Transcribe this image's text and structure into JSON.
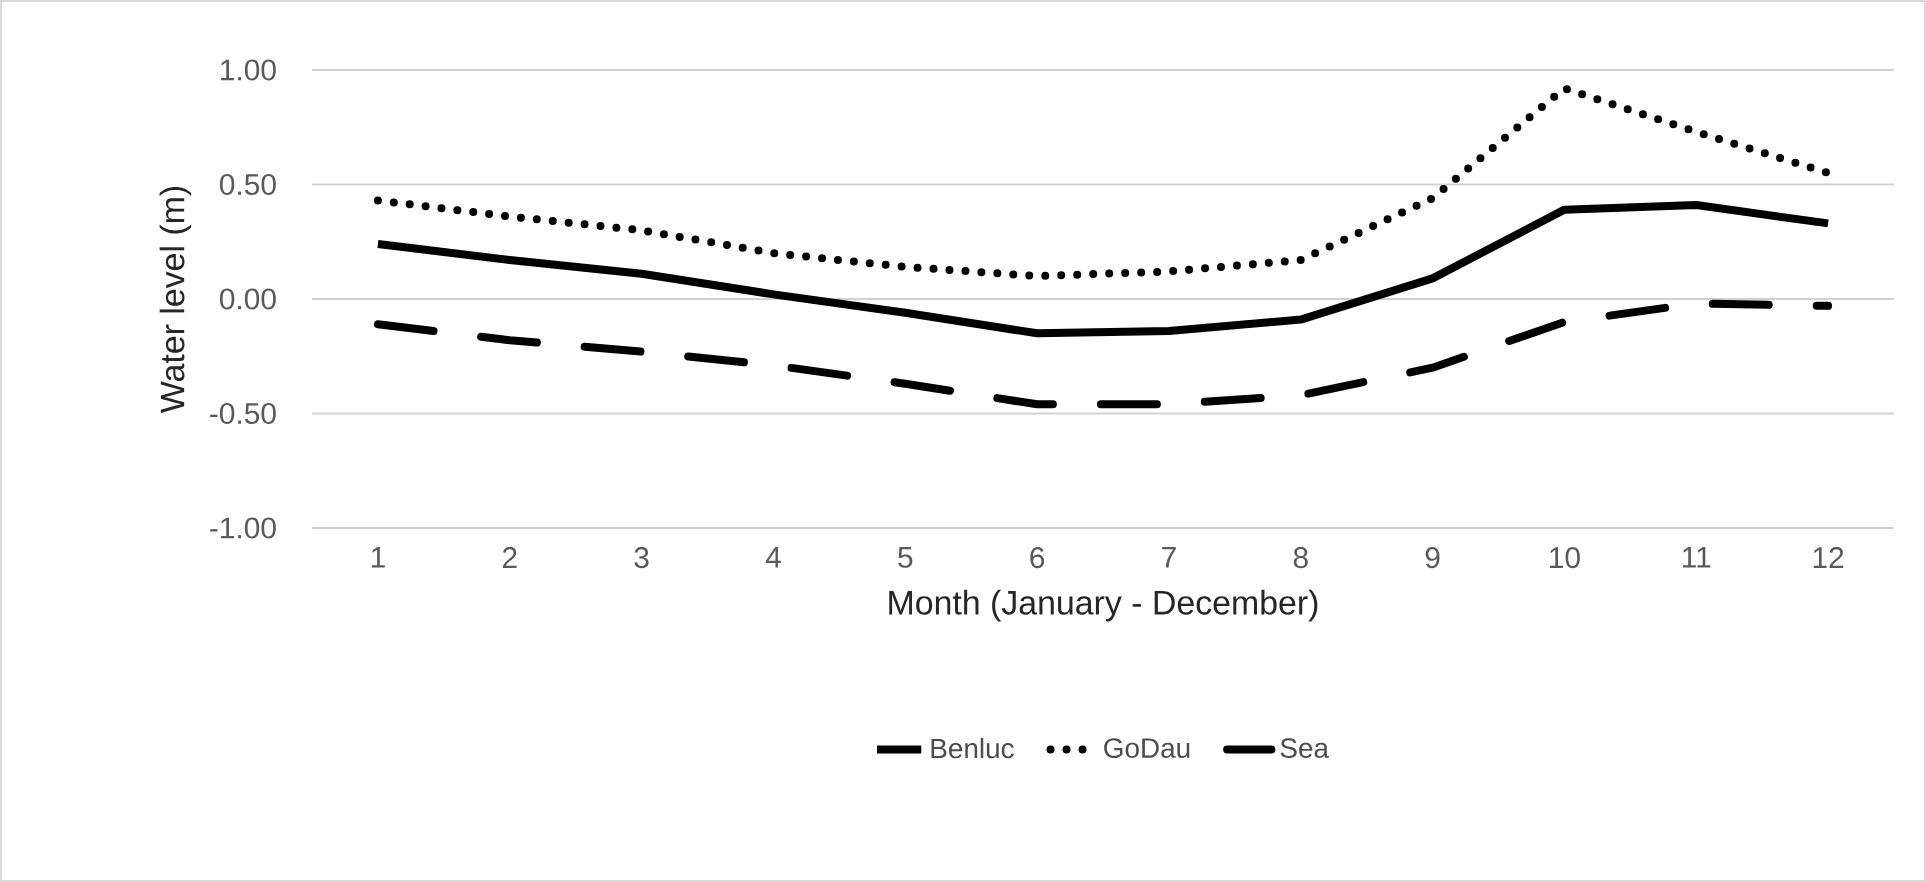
{
  "chart_data": {
    "type": "line",
    "xlabel": "Month (January - December)",
    "ylabel": "Water level (m)",
    "categories": [
      "1",
      "2",
      "3",
      "4",
      "5",
      "6",
      "7",
      "8",
      "9",
      "10",
      "11",
      "12"
    ],
    "series": [
      {
        "name": "Benluc",
        "color": "#000000",
        "line_style": "solid",
        "values": [
          0.24,
          0.17,
          0.11,
          0.02,
          -0.06,
          -0.15,
          -0.14,
          -0.09,
          0.09,
          0.39,
          0.41,
          0.33
        ]
      },
      {
        "name": "GoDau",
        "color": "#000000",
        "line_style": "dotted",
        "values": [
          0.43,
          0.36,
          0.3,
          0.2,
          0.14,
          0.1,
          0.12,
          0.17,
          0.44,
          0.92,
          0.73,
          0.55
        ]
      },
      {
        "name": "Sea",
        "color": "#000000",
        "line_style": "dashed",
        "values": [
          -0.11,
          -0.18,
          -0.23,
          -0.29,
          -0.37,
          -0.46,
          -0.46,
          -0.42,
          -0.3,
          -0.1,
          -0.02,
          -0.03
        ]
      }
    ],
    "ylim": [
      -1.0,
      1.0
    ],
    "yticks": [
      {
        "value": -1.0,
        "label": "-1.00"
      },
      {
        "value": -0.5,
        "label": "-0.50"
      },
      {
        "value": 0,
        "label": "0.00"
      },
      {
        "value": 0.5,
        "label": "0.50"
      },
      {
        "value": 1.0,
        "label": "1.00"
      }
    ],
    "grid": "y",
    "legend": "bottom",
    "marker": "none"
  }
}
